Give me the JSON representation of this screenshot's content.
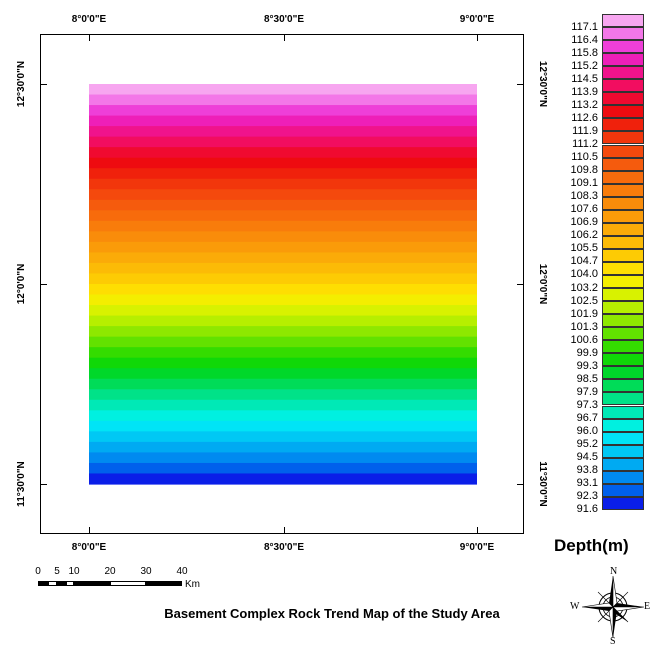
{
  "map": {
    "top_lon_labels": [
      "8°0'0\"E",
      "8°30'0\"E",
      "9°0'0\"E"
    ],
    "bottom_lon_labels": [
      "8°0'0\"E",
      "8°30'0\"E",
      "9°0'0\"E"
    ],
    "left_lat_labels": [
      "12°30'0\"N",
      "12°0'0\"N",
      "11°30'0\"N"
    ],
    "right_lat_labels": [
      "12°30'0\"N",
      "12°0'0\"N",
      "11°30'0\"N"
    ],
    "title": "Basement Complex Rock Trend Map of the Study Area",
    "surface_fill": "horizontal colour bands (depth increasing northward)"
  },
  "legend": {
    "title": "Depth(m)",
    "classes": [
      {
        "label": "117.1",
        "color": "#f7a6f0"
      },
      {
        "label": "116.4",
        "color": "#f377e8"
      },
      {
        "label": "115.8",
        "color": "#ee3fd8"
      },
      {
        "label": "115.2",
        "color": "#ee1fb8"
      },
      {
        "label": "114.5",
        "color": "#f0138c"
      },
      {
        "label": "113.9",
        "color": "#f20d60"
      },
      {
        "label": "113.2",
        "color": "#f00a30"
      },
      {
        "label": "112.6",
        "color": "#ee0b10"
      },
      {
        "label": "111.9",
        "color": "#f0210c"
      },
      {
        "label": "111.2",
        "color": "#f2360c"
      },
      {
        "label": "110.5",
        "color": "#f4490d"
      },
      {
        "label": "109.8",
        "color": "#f55b0d"
      },
      {
        "label": "109.1",
        "color": "#f76b0c"
      },
      {
        "label": "108.3",
        "color": "#f87c0b"
      },
      {
        "label": "107.6",
        "color": "#f98c0a"
      },
      {
        "label": "106.9",
        "color": "#fa9b09"
      },
      {
        "label": "106.2",
        "color": "#fbab08"
      },
      {
        "label": "105.5",
        "color": "#fcbb06"
      },
      {
        "label": "104.7",
        "color": "#fdcb04"
      },
      {
        "label": "104.0",
        "color": "#fede02"
      },
      {
        "label": "103.2",
        "color": "#f4ee00"
      },
      {
        "label": "102.5",
        "color": "#d8f200"
      },
      {
        "label": "101.9",
        "color": "#b6ef00"
      },
      {
        "label": "101.3",
        "color": "#8ee800"
      },
      {
        "label": "100.6",
        "color": "#62e200"
      },
      {
        "label": "99.9",
        "color": "#34dc00"
      },
      {
        "label": "99.3",
        "color": "#10d808"
      },
      {
        "label": "98.5",
        "color": "#00d82a"
      },
      {
        "label": "97.9",
        "color": "#00dc58"
      },
      {
        "label": "97.3",
        "color": "#00e288"
      },
      {
        "label": "96.7",
        "color": "#00e9b6"
      },
      {
        "label": "96.0",
        "color": "#00f0e0"
      },
      {
        "label": "95.2",
        "color": "#00e4f6"
      },
      {
        "label": "94.5",
        "color": "#00c8f4"
      },
      {
        "label": "93.8",
        "color": "#00aaf2"
      },
      {
        "label": "93.1",
        "color": "#008af0"
      },
      {
        "label": "92.3",
        "color": "#0060ec"
      },
      {
        "label": "91.6",
        "color": "#0a1ee8"
      }
    ]
  },
  "scale_bar": {
    "labels": [
      "0",
      "5",
      "10",
      "20",
      "30",
      "40"
    ],
    "unit": "Km"
  },
  "north_arrow": {
    "letters": {
      "north": "N",
      "south": "S",
      "east": "E",
      "west": "W"
    }
  }
}
